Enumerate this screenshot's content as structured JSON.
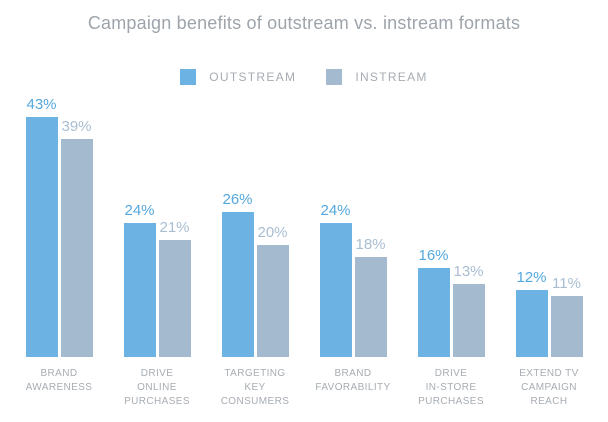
{
  "title": "Campaign benefits of outstream vs. instream formats",
  "legend": [
    {
      "label": "OUTSTREAM",
      "color": "#6cb2e2"
    },
    {
      "label": "INSTREAM",
      "color": "#a4bace"
    }
  ],
  "colors": {
    "background": "#ffffff",
    "title_text": "#9da4ab",
    "category_text": "#a7adb3",
    "legend_text": "#a6acb3"
  },
  "chart_data": {
    "type": "bar",
    "title": "Campaign benefits of outstream vs. instream formats",
    "categories": [
      "BRAND\nAWARENESS",
      "DRIVE\nONLINE\nPURCHASES",
      "TARGETING\nKEY\nCONSUMERS",
      "BRAND\nFAVORABILITY",
      "DRIVE\nIN-STORE\nPURCHASES",
      "EXTEND TV\nCAMPAIGN\nREACH"
    ],
    "series": [
      {
        "name": "OUTSTREAM",
        "values": [
          43,
          24,
          26,
          24,
          16,
          12
        ],
        "bar_color": "#6cb2e2",
        "label_color": "#55a8de"
      },
      {
        "name": "INSTREAM",
        "values": [
          39,
          21,
          20,
          18,
          13,
          11
        ],
        "bar_color": "#a4bace",
        "label_color": "#a9bed2"
      }
    ],
    "value_suffix": "%",
    "xlabel": "",
    "ylabel": "",
    "ylim": [
      0,
      43
    ],
    "grid": false,
    "axis_lines": false,
    "legend_position": "top",
    "value_labels": "above-bars"
  }
}
